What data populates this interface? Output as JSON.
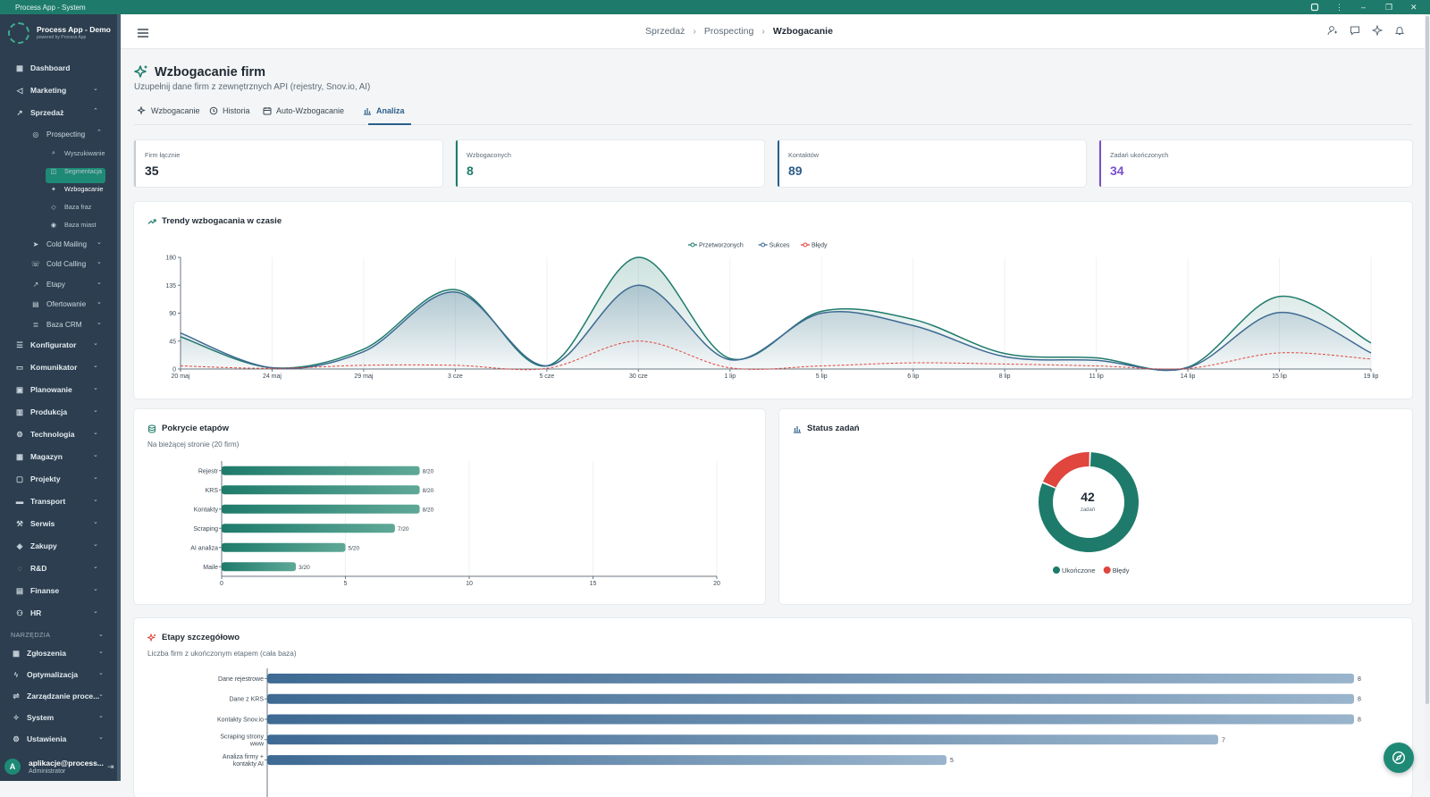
{
  "window": {
    "title": "Process App - System"
  },
  "brand": {
    "name": "Process App - Demo",
    "tagline": "powered by Process App"
  },
  "sidebar": {
    "items": [
      {
        "label": "Dashboard",
        "icon": "grid-icon"
      },
      {
        "label": "Marketing",
        "icon": "megaphone-icon"
      },
      {
        "label": "Sprzedaż",
        "icon": "trending-icon"
      },
      {
        "label": "Prospecting",
        "icon": "target-icon"
      },
      {
        "label": "Wyszukiwanie",
        "icon": "search-icon"
      },
      {
        "label": "Segmentacja",
        "icon": "segment-icon"
      },
      {
        "label": "Wzbogacanie",
        "icon": "sparkle-icon"
      },
      {
        "label": "Baza fraz",
        "icon": "tag-icon"
      },
      {
        "label": "Baza miast",
        "icon": "pin-icon"
      },
      {
        "label": "Cold Mailing",
        "icon": "send-icon"
      },
      {
        "label": "Cold Calling",
        "icon": "phone-icon"
      },
      {
        "label": "Etapy",
        "icon": "trending-icon"
      },
      {
        "label": "Ofertowanie",
        "icon": "file-icon"
      },
      {
        "label": "Baza CRM",
        "icon": "database-icon"
      },
      {
        "label": "Konfigurator",
        "icon": "sliders-icon"
      },
      {
        "label": "Komunikator",
        "icon": "chat-icon"
      },
      {
        "label": "Planowanie",
        "icon": "calendar-icon"
      },
      {
        "label": "Produkcja",
        "icon": "factory-icon"
      },
      {
        "label": "Technologia",
        "icon": "cog-icon"
      },
      {
        "label": "Magazyn",
        "icon": "warehouse-icon"
      },
      {
        "label": "Projekty",
        "icon": "folder-icon"
      },
      {
        "label": "Transport",
        "icon": "truck-icon"
      },
      {
        "label": "Serwis",
        "icon": "wrench-icon"
      },
      {
        "label": "Zakupy",
        "icon": "box-icon"
      },
      {
        "label": "R&D",
        "icon": "bulb-icon"
      },
      {
        "label": "Finanse",
        "icon": "money-icon"
      },
      {
        "label": "HR",
        "icon": "people-icon"
      }
    ],
    "section_label": "NARZĘDZIA",
    "tools": [
      {
        "label": "Zgłoszenia",
        "icon": "ticket-icon"
      },
      {
        "label": "Optymalizacja",
        "icon": "bolt-icon"
      },
      {
        "label": "Zarządzanie proce...",
        "icon": "flow-icon"
      },
      {
        "label": "System",
        "icon": "system-icon"
      },
      {
        "label": "Ustawienia",
        "icon": "gear-icon"
      }
    ],
    "user": {
      "initial": "A",
      "name": "aplikacje@process...",
      "role": "Administrator"
    }
  },
  "breadcrumb": [
    "Sprzedaż",
    "Prospecting",
    "Wzbogacanie"
  ],
  "page": {
    "title": "Wzbogacanie firm",
    "subtitle": "Uzupełnij dane firm z zewnętrznych API (rejestry, Snov.io, AI)",
    "tabs": [
      "Wzbogacanie",
      "Historia",
      "Auto-Wzbogacanie",
      "Analiza"
    ],
    "active_tab": "Analiza"
  },
  "stats": [
    {
      "label": "Firm łącznie",
      "value": "35",
      "color": "#c5ccd2"
    },
    {
      "label": "Wzbogaconych",
      "value": "8",
      "color": "#1e7b6b"
    },
    {
      "label": "Kontaktów",
      "value": "89",
      "color": "#2c5f8a"
    },
    {
      "label": "Zadań ukończonych",
      "value": "34",
      "color": "#7b4fc9"
    }
  ],
  "trend": {
    "title": "Trendy wzbogacania w czasie",
    "chart_data": {
      "type": "area",
      "x": [
        "20 maj",
        "24 maj",
        "29 maj",
        "3 cze",
        "5 cze",
        "30 cze",
        "1 lip",
        "5 lip",
        "6 lip",
        "8 lip",
        "11 lip",
        "14 lip",
        "15 lip",
        "19 lip"
      ],
      "series": [
        {
          "name": "Przetworzonych",
          "color": "#1e7b6b",
          "values": [
            52,
            2,
            32,
            128,
            5,
            180,
            17,
            93,
            80,
            25,
            18,
            3,
            117,
            42
          ]
        },
        {
          "name": "Sukces",
          "color": "#3e6a93",
          "values": [
            58,
            2,
            28,
            124,
            5,
            135,
            15,
            90,
            70,
            20,
            14,
            2,
            91,
            26
          ]
        },
        {
          "name": "Błędy",
          "color": "#e0453e",
          "values": [
            5,
            1,
            6,
            6,
            1,
            45,
            2,
            5,
            10,
            8,
            5,
            1,
            26,
            16
          ]
        }
      ],
      "yticks": [
        0,
        45,
        90,
        135,
        180
      ],
      "ylim": [
        0,
        180
      ]
    }
  },
  "coverage": {
    "title": "Pokrycie etapów",
    "subtitle": "Na bieżącej stronie (20 firm)",
    "chart_data": {
      "type": "bar",
      "orientation": "horizontal",
      "categories": [
        "Rejestr",
        "KRS",
        "Kontakty",
        "Scraping",
        "AI analiza",
        "Maile"
      ],
      "values": [
        8,
        8,
        8,
        7,
        5,
        3
      ],
      "labels": [
        "8/20",
        "8/20",
        "8/20",
        "7/20",
        "5/20",
        "3/20"
      ],
      "xticks": [
        0,
        5,
        10,
        15,
        20
      ],
      "xlim": [
        0,
        20
      ],
      "color": "#1e7b6b"
    }
  },
  "status": {
    "title": "Status zadań",
    "total": "42",
    "unit": "zadań",
    "chart_data": {
      "type": "pie",
      "slices": [
        {
          "name": "Ukończone",
          "value": 34,
          "color": "#1e7b6b"
        },
        {
          "name": "Błędy",
          "value": 8,
          "color": "#e0453e"
        }
      ]
    }
  },
  "stages": {
    "title": "Etapy szczegółowo",
    "subtitle": "Liczba firm z ukończonym etapem (cała baza)",
    "chart_data": {
      "type": "bar",
      "orientation": "horizontal",
      "categories": [
        [
          "Dane rejestrowe"
        ],
        [
          "Dane z KRS"
        ],
        [
          "Kontakty Snov.io"
        ],
        [
          "Scraping strony",
          "www"
        ],
        [
          "Analiza firmy +",
          "kontakty AI"
        ]
      ],
      "values": [
        8,
        8,
        8,
        7,
        5
      ],
      "color": "#3e6a93"
    }
  }
}
